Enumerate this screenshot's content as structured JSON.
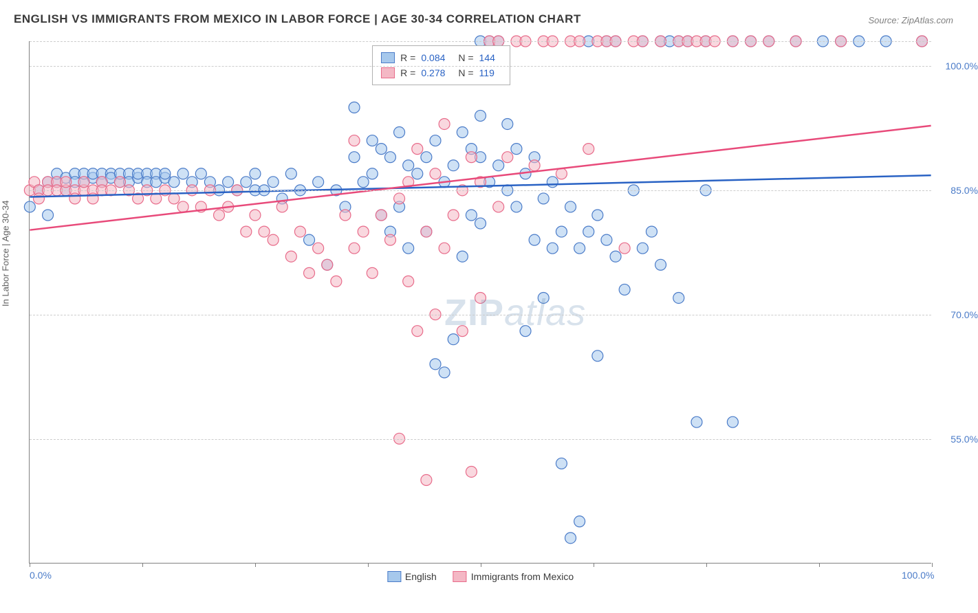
{
  "title": "ENGLISH VS IMMIGRANTS FROM MEXICO IN LABOR FORCE | AGE 30-34 CORRELATION CHART",
  "source": "Source: ZipAtlas.com",
  "y_axis_title": "In Labor Force | Age 30-34",
  "watermark_zip": "ZIP",
  "watermark_atlas": "atlas",
  "chart": {
    "type": "scatter",
    "xlim": [
      0,
      100
    ],
    "ylim": [
      40,
      103
    ],
    "x_ticks": [
      0,
      12.5,
      25,
      37.5,
      50,
      62.5,
      75,
      87.5,
      100
    ],
    "y_gridlines": [
      55,
      70,
      85,
      100,
      103
    ],
    "x_tick_labels": {
      "0": "0.0%",
      "100": "100.0%"
    },
    "y_tick_labels": {
      "55": "55.0%",
      "70": "70.0%",
      "85": "85.0%",
      "100": "100.0%"
    },
    "tick_label_color": "#4a7bc8",
    "grid_color": "#cccccc",
    "axis_color": "#808080",
    "background_color": "#ffffff",
    "marker_radius": 8,
    "marker_opacity": 0.55,
    "line_width": 2.5,
    "series": [
      {
        "name": "English",
        "label": "English",
        "fill_color": "#a6c8ec",
        "stroke_color": "#4a7bc8",
        "trend_color": "#2962c4",
        "r_value": "0.084",
        "n_value": "144",
        "trend": {
          "x1": 0,
          "y1": 84.2,
          "x2": 100,
          "y2": 86.8
        },
        "points": [
          [
            0,
            83
          ],
          [
            1,
            85
          ],
          [
            2,
            86
          ],
          [
            2,
            82
          ],
          [
            3,
            86
          ],
          [
            3,
            87
          ],
          [
            4,
            86.5
          ],
          [
            4,
            85
          ],
          [
            5,
            87
          ],
          [
            5,
            86
          ],
          [
            6,
            86
          ],
          [
            6,
            87
          ],
          [
            7,
            86.5
          ],
          [
            7,
            87
          ],
          [
            8,
            87
          ],
          [
            8,
            86
          ],
          [
            9,
            87
          ],
          [
            9,
            86.5
          ],
          [
            10,
            86
          ],
          [
            10,
            87
          ],
          [
            11,
            87
          ],
          [
            11,
            86
          ],
          [
            12,
            86.5
          ],
          [
            12,
            87
          ],
          [
            13,
            87
          ],
          [
            13,
            86
          ],
          [
            14,
            87
          ],
          [
            14,
            86
          ],
          [
            15,
            86.5
          ],
          [
            15,
            87
          ],
          [
            16,
            86
          ],
          [
            17,
            87
          ],
          [
            18,
            86
          ],
          [
            19,
            87
          ],
          [
            20,
            86
          ],
          [
            21,
            85
          ],
          [
            22,
            86
          ],
          [
            23,
            85
          ],
          [
            24,
            86
          ],
          [
            25,
            87
          ],
          [
            25,
            85
          ],
          [
            26,
            85
          ],
          [
            27,
            86
          ],
          [
            28,
            84
          ],
          [
            29,
            87
          ],
          [
            30,
            85
          ],
          [
            31,
            79
          ],
          [
            32,
            86
          ],
          [
            33,
            76
          ],
          [
            34,
            85
          ],
          [
            35,
            83
          ],
          [
            36,
            95
          ],
          [
            36,
            89
          ],
          [
            37,
            86
          ],
          [
            38,
            91
          ],
          [
            38,
            87
          ],
          [
            39,
            90
          ],
          [
            39,
            82
          ],
          [
            40,
            89
          ],
          [
            40,
            80
          ],
          [
            41,
            92
          ],
          [
            41,
            83
          ],
          [
            42,
            88
          ],
          [
            42,
            78
          ],
          [
            43,
            87
          ],
          [
            44,
            89
          ],
          [
            44,
            80
          ],
          [
            45,
            91
          ],
          [
            45,
            64
          ],
          [
            46,
            86
          ],
          [
            46,
            63
          ],
          [
            47,
            88
          ],
          [
            47,
            67
          ],
          [
            48,
            92
          ],
          [
            48,
            77
          ],
          [
            49,
            90
          ],
          [
            49,
            82
          ],
          [
            50,
            103
          ],
          [
            50,
            94
          ],
          [
            50,
            89
          ],
          [
            50,
            81
          ],
          [
            51,
            86
          ],
          [
            51,
            103
          ],
          [
            52,
            88
          ],
          [
            52,
            103
          ],
          [
            53,
            93
          ],
          [
            53,
            85
          ],
          [
            54,
            90
          ],
          [
            54,
            83
          ],
          [
            55,
            87
          ],
          [
            55,
            68
          ],
          [
            56,
            89
          ],
          [
            56,
            79
          ],
          [
            57,
            84
          ],
          [
            57,
            72
          ],
          [
            58,
            86
          ],
          [
            58,
            78
          ],
          [
            59,
            80
          ],
          [
            59,
            52
          ],
          [
            60,
            83
          ],
          [
            60,
            43
          ],
          [
            61,
            78
          ],
          [
            61,
            45
          ],
          [
            62,
            103
          ],
          [
            62,
            80
          ],
          [
            63,
            65
          ],
          [
            63,
            82
          ],
          [
            64,
            103
          ],
          [
            64,
            79
          ],
          [
            65,
            77
          ],
          [
            65,
            103
          ],
          [
            66,
            73
          ],
          [
            67,
            85
          ],
          [
            68,
            103
          ],
          [
            68,
            78
          ],
          [
            69,
            80
          ],
          [
            70,
            103
          ],
          [
            70,
            76
          ],
          [
            71,
            103
          ],
          [
            72,
            103
          ],
          [
            72,
            72
          ],
          [
            73,
            103
          ],
          [
            74,
            57
          ],
          [
            75,
            103
          ],
          [
            75,
            85
          ],
          [
            78,
            103
          ],
          [
            78,
            57
          ],
          [
            80,
            103
          ],
          [
            82,
            103
          ],
          [
            85,
            103
          ],
          [
            88,
            103
          ],
          [
            90,
            103
          ],
          [
            92,
            103
          ],
          [
            95,
            103
          ],
          [
            99,
            103
          ]
        ]
      },
      {
        "name": "Immigrants from Mexico",
        "label": "Immigrants from Mexico",
        "fill_color": "#f4b8c5",
        "stroke_color": "#e86b8a",
        "trend_color": "#e84a7a",
        "r_value": "0.278",
        "n_value": "119",
        "trend": {
          "x1": 0,
          "y1": 80.2,
          "x2": 100,
          "y2": 92.8
        },
        "points": [
          [
            0,
            85
          ],
          [
            0.5,
            86
          ],
          [
            1,
            85
          ],
          [
            1,
            84
          ],
          [
            2,
            86
          ],
          [
            2,
            85
          ],
          [
            3,
            86
          ],
          [
            3,
            85
          ],
          [
            4,
            85
          ],
          [
            4,
            86
          ],
          [
            5,
            85
          ],
          [
            5,
            84
          ],
          [
            6,
            85
          ],
          [
            6,
            86
          ],
          [
            7,
            85
          ],
          [
            7,
            84
          ],
          [
            8,
            86
          ],
          [
            8,
            85
          ],
          [
            9,
            85
          ],
          [
            10,
            86
          ],
          [
            11,
            85
          ],
          [
            12,
            84
          ],
          [
            13,
            85
          ],
          [
            14,
            84
          ],
          [
            15,
            85
          ],
          [
            16,
            84
          ],
          [
            17,
            83
          ],
          [
            18,
            85
          ],
          [
            19,
            83
          ],
          [
            20,
            85
          ],
          [
            21,
            82
          ],
          [
            22,
            83
          ],
          [
            23,
            85
          ],
          [
            24,
            80
          ],
          [
            25,
            82
          ],
          [
            26,
            80
          ],
          [
            27,
            79
          ],
          [
            28,
            83
          ],
          [
            29,
            77
          ],
          [
            30,
            80
          ],
          [
            31,
            75
          ],
          [
            32,
            78
          ],
          [
            33,
            76
          ],
          [
            34,
            74
          ],
          [
            35,
            82
          ],
          [
            36,
            91
          ],
          [
            36,
            78
          ],
          [
            37,
            80
          ],
          [
            38,
            75
          ],
          [
            39,
            82
          ],
          [
            40,
            79
          ],
          [
            41,
            84
          ],
          [
            41,
            55
          ],
          [
            42,
            86
          ],
          [
            42,
            74
          ],
          [
            43,
            68
          ],
          [
            43,
            90
          ],
          [
            44,
            80
          ],
          [
            44,
            50
          ],
          [
            45,
            87
          ],
          [
            45,
            70
          ],
          [
            46,
            93
          ],
          [
            46,
            78
          ],
          [
            47,
            82
          ],
          [
            48,
            85
          ],
          [
            48,
            68
          ],
          [
            49,
            89
          ],
          [
            49,
            51
          ],
          [
            50,
            86
          ],
          [
            50,
            72
          ],
          [
            51,
            103
          ],
          [
            52,
            103
          ],
          [
            52,
            83
          ],
          [
            53,
            89
          ],
          [
            54,
            103
          ],
          [
            55,
            103
          ],
          [
            56,
            88
          ],
          [
            57,
            103
          ],
          [
            58,
            103
          ],
          [
            59,
            87
          ],
          [
            60,
            103
          ],
          [
            61,
            103
          ],
          [
            62,
            90
          ],
          [
            63,
            103
          ],
          [
            64,
            103
          ],
          [
            65,
            103
          ],
          [
            66,
            78
          ],
          [
            67,
            103
          ],
          [
            68,
            103
          ],
          [
            70,
            103
          ],
          [
            72,
            103
          ],
          [
            73,
            103
          ],
          [
            74,
            103
          ],
          [
            75,
            103
          ],
          [
            76,
            103
          ],
          [
            78,
            103
          ],
          [
            80,
            103
          ],
          [
            82,
            103
          ],
          [
            85,
            103
          ],
          [
            90,
            103
          ],
          [
            99,
            103
          ]
        ]
      }
    ],
    "legend_top": {
      "r_label": "R =",
      "n_label": "N =",
      "value_color": "#2962c4"
    },
    "legend_bottom": [
      {
        "swatch_fill": "#a6c8ec",
        "swatch_stroke": "#4a7bc8",
        "label": "English"
      },
      {
        "swatch_fill": "#f4b8c5",
        "swatch_stroke": "#e86b8a",
        "label": "Immigrants from Mexico"
      }
    ]
  }
}
